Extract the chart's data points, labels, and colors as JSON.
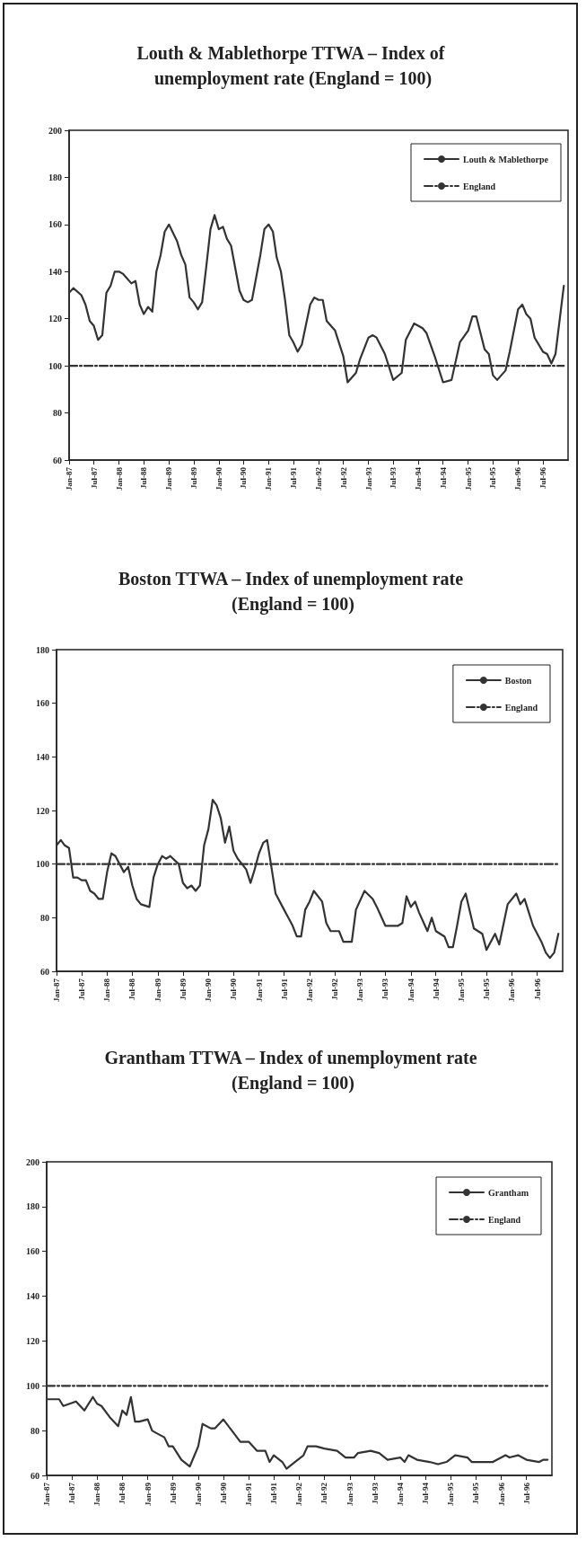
{
  "chart_data": [
    {
      "type": "line",
      "title": "Louth & Mablethorpe TTWA – Index of unemployment rate (England = 100)",
      "legend": "top right",
      "xlim": [
        "1987-01",
        "1997-01"
      ],
      "xticks": [
        {
          "value": "1987-01",
          "label": "Jan-87"
        },
        {
          "value": "1987-07",
          "label": "Jul-87"
        },
        {
          "value": "1988-01",
          "label": "Jan-88"
        },
        {
          "value": "1988-07",
          "label": "Jul-88"
        },
        {
          "value": "1989-01",
          "label": "Jan-89"
        },
        {
          "value": "1989-07",
          "label": "Jul-89"
        },
        {
          "value": "1990-01",
          "label": "Jan-90"
        },
        {
          "value": "1990-07",
          "label": "Jul-90"
        },
        {
          "value": "1991-01",
          "label": "Jan-91"
        },
        {
          "value": "1991-07",
          "label": "Jul-91"
        },
        {
          "value": "1992-01",
          "label": "Jan-92"
        },
        {
          "value": "1992-07",
          "label": "Jul-92"
        },
        {
          "value": "1993-01",
          "label": "Jan-93"
        },
        {
          "value": "1993-07",
          "label": "Jul-93"
        },
        {
          "value": "1994-01",
          "label": "Jan-94"
        },
        {
          "value": "1994-07",
          "label": "Jul-94"
        },
        {
          "value": "1995-01",
          "label": "Jan-95"
        },
        {
          "value": "1995-07",
          "label": "Jul-95"
        },
        {
          "value": "1996-01",
          "label": "Jan-96"
        },
        {
          "value": "1996-07",
          "label": "Jul-96"
        }
      ],
      "ylim": [
        60,
        200
      ],
      "yticks": [
        60,
        80,
        100,
        120,
        140,
        160,
        180,
        200
      ],
      "series": [
        {
          "name": "Louth & Mablethorpe",
          "color": "#333333",
          "line_style": "solid",
          "x": [
            "1987-01",
            "1987-02",
            "1987-04",
            "1987-05",
            "1987-06",
            "1987-07",
            "1987-08",
            "1987-09",
            "1987-10",
            "1987-11",
            "1987-12",
            "1988-01",
            "1988-02",
            "1988-04",
            "1988-05",
            "1988-06",
            "1988-07",
            "1988-08",
            "1988-09",
            "1988-10",
            "1988-11",
            "1988-12",
            "1989-01",
            "1989-03",
            "1989-04",
            "1989-05",
            "1989-06",
            "1989-07",
            "1989-08",
            "1989-09",
            "1989-10",
            "1989-11",
            "1989-12",
            "1990-01",
            "1990-02",
            "1990-03",
            "1990-04",
            "1990-06",
            "1990-07",
            "1990-08",
            "1990-09",
            "1990-11",
            "1990-12",
            "1991-01",
            "1991-02",
            "1991-03",
            "1991-04",
            "1991-05",
            "1991-06",
            "1991-07",
            "1991-08",
            "1991-09",
            "1991-11",
            "1991-12",
            "1992-01",
            "1992-02",
            "1992-03",
            "1992-05",
            "1992-07",
            "1992-08",
            "1992-10",
            "1992-11",
            "1993-01",
            "1993-02",
            "1993-03",
            "1993-05",
            "1993-07",
            "1993-09",
            "1993-10",
            "1993-12",
            "1994-02",
            "1994-03",
            "1994-05",
            "1994-07",
            "1994-09",
            "1994-11",
            "1995-01",
            "1995-02",
            "1995-03",
            "1995-05",
            "1995-06",
            "1995-07",
            "1995-08",
            "1995-10",
            "1995-11",
            "1996-01",
            "1996-02",
            "1996-03",
            "1996-04",
            "1996-05",
            "1996-07",
            "1996-08",
            "1996-09",
            "1996-10",
            "1996-12"
          ],
          "values": [
            131,
            133,
            130,
            126,
            119,
            117,
            111,
            113,
            131,
            134,
            140,
            140,
            139,
            135,
            136,
            126,
            122,
            125,
            123,
            140,
            147,
            157,
            160,
            153,
            147,
            143,
            129,
            127,
            124,
            127,
            142,
            158,
            164,
            158,
            159,
            154,
            151,
            132,
            128,
            127,
            128,
            147,
            158,
            160,
            157,
            146,
            140,
            128,
            113,
            110,
            106,
            109,
            126,
            129,
            128,
            128,
            119,
            115,
            104,
            93,
            97,
            103,
            112,
            113,
            112,
            105,
            94,
            97,
            111,
            118,
            116,
            114,
            104,
            93,
            94,
            110,
            115,
            121,
            121,
            107,
            105,
            96,
            94,
            98,
            106,
            124,
            126,
            122,
            120,
            112,
            106,
            105,
            101,
            105,
            134
          ]
        },
        {
          "name": "England",
          "color": "#333333",
          "line_style": "dashed",
          "x": [
            "1987-01",
            "1996-12"
          ],
          "values": [
            100,
            100
          ]
        }
      ]
    },
    {
      "type": "line",
      "title": "Boston TTWA – Index of unemployment rate (England = 100)",
      "legend": "top right",
      "xlim": [
        "1987-01",
        "1997-01"
      ],
      "xticks": [
        {
          "value": "1987-01",
          "label": "Jan-87"
        },
        {
          "value": "1987-07",
          "label": "Jul-87"
        },
        {
          "value": "1988-01",
          "label": "Jan-88"
        },
        {
          "value": "1988-07",
          "label": "Jul-88"
        },
        {
          "value": "1989-01",
          "label": "Jan-89"
        },
        {
          "value": "1989-07",
          "label": "Jul-89"
        },
        {
          "value": "1990-01",
          "label": "Jan-90"
        },
        {
          "value": "1990-07",
          "label": "Jul-90"
        },
        {
          "value": "1991-01",
          "label": "Jan-91"
        },
        {
          "value": "1991-07",
          "label": "Jul-91"
        },
        {
          "value": "1992-01",
          "label": "Jan-92"
        },
        {
          "value": "1992-07",
          "label": "Jul-92"
        },
        {
          "value": "1993-01",
          "label": "Jan-93"
        },
        {
          "value": "1993-07",
          "label": "Jul-93"
        },
        {
          "value": "1994-01",
          "label": "Jan-94"
        },
        {
          "value": "1994-07",
          "label": "Jul-94"
        },
        {
          "value": "1995-01",
          "label": "Jan-95"
        },
        {
          "value": "1995-07",
          "label": "Jul-95"
        },
        {
          "value": "1996-01",
          "label": "Jan-96"
        },
        {
          "value": "1996-07",
          "label": "Jul-96"
        }
      ],
      "ylim": [
        60,
        180
      ],
      "yticks": [
        60,
        80,
        100,
        120,
        140,
        160,
        180
      ],
      "series": [
        {
          "name": "Boston",
          "color": "#333333",
          "line_style": "solid",
          "x": [
            "1987-01",
            "1987-02",
            "1987-03",
            "1987-04",
            "1987-05",
            "1987-06",
            "1987-07",
            "1987-08",
            "1987-09",
            "1987-10",
            "1987-11",
            "1987-12",
            "1988-01",
            "1988-02",
            "1988-03",
            "1988-05",
            "1988-06",
            "1988-07",
            "1988-08",
            "1988-09",
            "1988-11",
            "1988-12",
            "1989-01",
            "1989-02",
            "1989-03",
            "1989-04",
            "1989-06",
            "1989-07",
            "1989-08",
            "1989-09",
            "1989-10",
            "1989-11",
            "1989-12",
            "1990-01",
            "1990-02",
            "1990-03",
            "1990-04",
            "1990-05",
            "1990-06",
            "1990-07",
            "1990-08",
            "1990-09",
            "1990-10",
            "1990-11",
            "1990-12",
            "1991-01",
            "1991-02",
            "1991-03",
            "1991-05",
            "1991-07",
            "1991-08",
            "1991-09",
            "1991-10",
            "1991-11",
            "1991-12",
            "1992-01",
            "1992-02",
            "1992-04",
            "1992-05",
            "1992-06",
            "1992-08",
            "1992-09",
            "1992-11",
            "1992-12",
            "1993-02",
            "1993-04",
            "1993-05",
            "1993-07",
            "1993-09",
            "1993-10",
            "1993-11",
            "1993-12",
            "1994-01",
            "1994-02",
            "1994-03",
            "1994-05",
            "1994-06",
            "1994-07",
            "1994-09",
            "1994-10",
            "1994-11",
            "1994-12",
            "1995-01",
            "1995-02",
            "1995-04",
            "1995-06",
            "1995-07",
            "1995-09",
            "1995-10",
            "1995-12",
            "1996-02",
            "1996-03",
            "1996-04",
            "1996-06",
            "1996-08",
            "1996-09",
            "1996-10",
            "1996-11",
            "1996-12"
          ],
          "values": [
            107,
            109,
            107,
            106,
            95,
            95,
            94,
            94,
            90,
            89,
            87,
            87,
            97,
            104,
            103,
            97,
            99,
            92,
            87,
            85,
            84,
            95,
            100,
            103,
            102,
            103,
            100,
            93,
            91,
            92,
            90,
            92,
            107,
            113,
            124,
            122,
            117,
            108,
            114,
            105,
            102,
            100,
            98,
            93,
            98,
            104,
            108,
            109,
            89,
            83,
            80,
            77,
            73,
            73,
            83,
            86,
            90,
            86,
            78,
            75,
            75,
            71,
            71,
            83,
            90,
            87,
            84,
            77,
            77,
            77,
            78,
            88,
            84,
            86,
            82,
            75,
            80,
            75,
            73,
            69,
            69,
            77,
            86,
            89,
            76,
            74,
            68,
            74,
            70,
            85,
            89,
            85,
            87,
            77,
            71,
            67,
            65,
            67,
            74
          ]
        },
        {
          "name": "England",
          "color": "#333333",
          "line_style": "dashed",
          "x": [
            "1987-01",
            "1996-12"
          ],
          "values": [
            100,
            100
          ]
        }
      ]
    },
    {
      "type": "line",
      "title": "Grantham TTWA – Index of unemployment rate (England = 100)",
      "legend": "top right",
      "xlim": [
        "1987-01",
        "1997-01"
      ],
      "xticks": [
        {
          "value": "1987-01",
          "label": "Jan-87"
        },
        {
          "value": "1987-07",
          "label": "Jul-87"
        },
        {
          "value": "1988-01",
          "label": "Jan-88"
        },
        {
          "value": "1988-07",
          "label": "Jul-88"
        },
        {
          "value": "1989-01",
          "label": "Jan-89"
        },
        {
          "value": "1989-07",
          "label": "Jul-89"
        },
        {
          "value": "1990-01",
          "label": "Jan-90"
        },
        {
          "value": "1990-07",
          "label": "Jul-90"
        },
        {
          "value": "1991-01",
          "label": "Jan-91"
        },
        {
          "value": "1991-07",
          "label": "Jul-91"
        },
        {
          "value": "1992-01",
          "label": "Jan-92"
        },
        {
          "value": "1992-07",
          "label": "Jul-92"
        },
        {
          "value": "1993-01",
          "label": "Jan-93"
        },
        {
          "value": "1993-07",
          "label": "Jul-93"
        },
        {
          "value": "1994-01",
          "label": "Jan-94"
        },
        {
          "value": "1994-07",
          "label": "Jul-94"
        },
        {
          "value": "1995-01",
          "label": "Jan-95"
        },
        {
          "value": "1995-07",
          "label": "Jul-95"
        },
        {
          "value": "1996-01",
          "label": "Jan-96"
        },
        {
          "value": "1996-07",
          "label": "Jul-96"
        }
      ],
      "ylim": [
        60,
        200
      ],
      "yticks": [
        60,
        80,
        100,
        120,
        140,
        160,
        180,
        200
      ],
      "series": [
        {
          "name": "Grantham",
          "color": "#333333",
          "line_style": "solid",
          "x": [
            "1987-01",
            "1987-04",
            "1987-05",
            "1987-08",
            "1987-10",
            "1987-12",
            "1988-01",
            "1988-02",
            "1988-04",
            "1988-06",
            "1988-07",
            "1988-08",
            "1988-09",
            "1988-10",
            "1988-11",
            "1989-01",
            "1989-02",
            "1989-03",
            "1989-05",
            "1989-06",
            "1989-07",
            "1989-09",
            "1989-11",
            "1990-01",
            "1990-02",
            "1990-04",
            "1990-05",
            "1990-07",
            "1990-09",
            "1990-11",
            "1991-01",
            "1991-03",
            "1991-05",
            "1991-06",
            "1991-07",
            "1991-09",
            "1991-10",
            "1991-12",
            "1992-02",
            "1992-03",
            "1992-05",
            "1992-07",
            "1992-10",
            "1992-12",
            "1993-02",
            "1993-03",
            "1993-06",
            "1993-08",
            "1993-10",
            "1994-01",
            "1994-02",
            "1994-03",
            "1994-05",
            "1994-08",
            "1994-10",
            "1994-12",
            "1995-02",
            "1995-05",
            "1995-06",
            "1995-09",
            "1995-11",
            "1996-02",
            "1996-03",
            "1996-05",
            "1996-07",
            "1996-10",
            "1996-11",
            "1996-12"
          ],
          "values": [
            94,
            94,
            91,
            93,
            89,
            95,
            92,
            91,
            86,
            82,
            89,
            87,
            95,
            84,
            84,
            85,
            80,
            79,
            77,
            73,
            73,
            67,
            64,
            73,
            83,
            81,
            81,
            85,
            80,
            75,
            75,
            71,
            71,
            66,
            69,
            66,
            63,
            66,
            69,
            73,
            73,
            72,
            71,
            68,
            68,
            70,
            71,
            70,
            67,
            68,
            66,
            69,
            67,
            66,
            65,
            66,
            69,
            68,
            66,
            66,
            66,
            69,
            68,
            69,
            67,
            66,
            67,
            67
          ]
        },
        {
          "name": "England",
          "color": "#333333",
          "line_style": "dashed",
          "x": [
            "1987-01",
            "1996-12"
          ],
          "values": [
            100,
            100
          ]
        }
      ]
    }
  ]
}
